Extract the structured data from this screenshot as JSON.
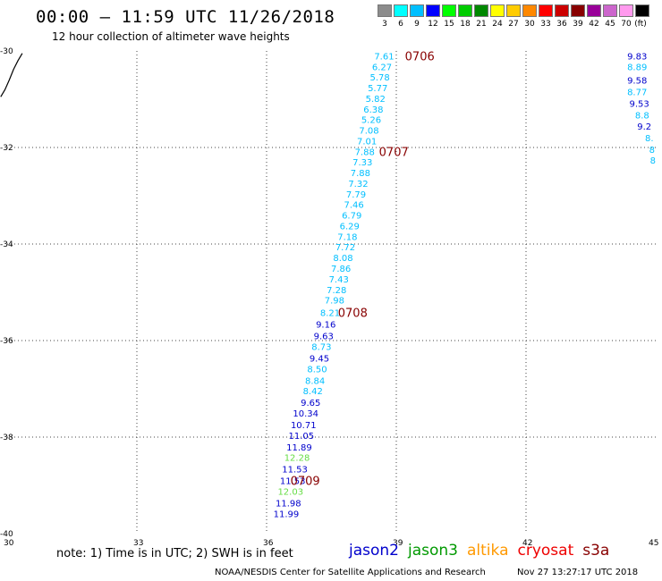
{
  "header": {
    "title": "00:00 – 11:59 UTC 11/26/2018",
    "subtitle": "12 hour collection of altimeter wave heights"
  },
  "legend": {
    "unit": "(ft)",
    "items": [
      {
        "label": "3",
        "color": "#8c8c8c"
      },
      {
        "label": "6",
        "color": "#00ffff"
      },
      {
        "label": "9",
        "color": "#00bfff"
      },
      {
        "label": "12",
        "color": "#0000ff"
      },
      {
        "label": "15",
        "color": "#00ff00"
      },
      {
        "label": "18",
        "color": "#00cc00"
      },
      {
        "label": "21",
        "color": "#008800"
      },
      {
        "label": "24",
        "color": "#ffff00"
      },
      {
        "label": "27",
        "color": "#ffcc00"
      },
      {
        "label": "30",
        "color": "#ff8800"
      },
      {
        "label": "33",
        "color": "#ff0000"
      },
      {
        "label": "36",
        "color": "#cc0000"
      },
      {
        "label": "39",
        "color": "#880000"
      },
      {
        "label": "42",
        "color": "#990099"
      },
      {
        "label": "45",
        "color": "#cc66cc"
      },
      {
        "label": "70",
        "color": "#ff99ee"
      },
      {
        "label": "",
        "color": "#000000"
      }
    ]
  },
  "map": {
    "lon_range": [
      30,
      45
    ],
    "lat_range": [
      -40,
      -30
    ],
    "lon_ticks": [
      "30",
      "33",
      "36",
      "39",
      "42",
      "45"
    ],
    "lat_ticks": [
      "-30",
      "-32",
      "-34",
      "-36",
      "-38",
      "-40"
    ],
    "track_main": [
      {
        "lon": 38.95,
        "lat": -30.1,
        "v": "7.61",
        "c": "#00bfff"
      },
      {
        "lon": 38.9,
        "lat": -30.32,
        "v": "6.27",
        "c": "#00bfff"
      },
      {
        "lon": 38.85,
        "lat": -30.54,
        "v": "5.78",
        "c": "#00bfff"
      },
      {
        "lon": 38.8,
        "lat": -30.76,
        "v": "5.77",
        "c": "#00bfff"
      },
      {
        "lon": 38.75,
        "lat": -30.98,
        "v": "5.82",
        "c": "#00bfff"
      },
      {
        "lon": 38.7,
        "lat": -31.2,
        "v": "6.38",
        "c": "#00bfff"
      },
      {
        "lon": 38.65,
        "lat": -31.42,
        "v": "5.26",
        "c": "#00bfff"
      },
      {
        "lon": 38.6,
        "lat": -31.64,
        "v": "7.08",
        "c": "#00bfff"
      },
      {
        "lon": 38.55,
        "lat": -31.86,
        "v": "7.01",
        "c": "#00bfff"
      },
      {
        "lon": 38.5,
        "lat": -32.08,
        "v": "7.88",
        "c": "#00bfff"
      },
      {
        "lon": 38.45,
        "lat": -32.3,
        "v": "7.33",
        "c": "#00bfff"
      },
      {
        "lon": 38.4,
        "lat": -32.52,
        "v": "7.88",
        "c": "#00bfff"
      },
      {
        "lon": 38.35,
        "lat": -32.74,
        "v": "7.32",
        "c": "#00bfff"
      },
      {
        "lon": 38.3,
        "lat": -32.96,
        "v": "7.79",
        "c": "#00bfff"
      },
      {
        "lon": 38.25,
        "lat": -33.18,
        "v": "7.46",
        "c": "#00bfff"
      },
      {
        "lon": 38.2,
        "lat": -33.4,
        "v": "6.79",
        "c": "#00bfff"
      },
      {
        "lon": 38.15,
        "lat": -33.62,
        "v": "6.29",
        "c": "#00bfff"
      },
      {
        "lon": 38.1,
        "lat": -33.84,
        "v": "7.18",
        "c": "#00bfff"
      },
      {
        "lon": 38.05,
        "lat": -34.06,
        "v": "7.72",
        "c": "#00bfff"
      },
      {
        "lon": 38.0,
        "lat": -34.28,
        "v": "8.08",
        "c": "#00bfff"
      },
      {
        "lon": 37.95,
        "lat": -34.5,
        "v": "7.86",
        "c": "#00bfff"
      },
      {
        "lon": 37.9,
        "lat": -34.72,
        "v": "7.43",
        "c": "#00bfff"
      },
      {
        "lon": 37.85,
        "lat": -34.94,
        "v": "7.28",
        "c": "#00bfff"
      },
      {
        "lon": 37.8,
        "lat": -35.16,
        "v": "7.98",
        "c": "#00bfff"
      },
      {
        "lon": 37.7,
        "lat": -35.42,
        "v": "8.21",
        "c": "#00bfff"
      },
      {
        "lon": 37.6,
        "lat": -35.66,
        "v": "9.16",
        "c": "#0000cc"
      },
      {
        "lon": 37.55,
        "lat": -35.9,
        "v": "9.63",
        "c": "#0000cc"
      },
      {
        "lon": 37.5,
        "lat": -36.12,
        "v": "8.73",
        "c": "#00bfff"
      },
      {
        "lon": 37.45,
        "lat": -36.36,
        "v": "9.45",
        "c": "#0000cc"
      },
      {
        "lon": 37.4,
        "lat": -36.58,
        "v": "8.50",
        "c": "#00bfff"
      },
      {
        "lon": 37.35,
        "lat": -36.82,
        "v": "8.84",
        "c": "#00bfff"
      },
      {
        "lon": 37.3,
        "lat": -37.04,
        "v": "8.42",
        "c": "#00bfff"
      },
      {
        "lon": 37.25,
        "lat": -37.28,
        "v": "9.65",
        "c": "#0000cc"
      },
      {
        "lon": 37.2,
        "lat": -37.5,
        "v": "10.34",
        "c": "#0000cc"
      },
      {
        "lon": 37.15,
        "lat": -37.74,
        "v": "10.71",
        "c": "#0000cc"
      },
      {
        "lon": 37.1,
        "lat": -37.96,
        "v": "11.05",
        "c": "#0000cc"
      },
      {
        "lon": 37.05,
        "lat": -38.2,
        "v": "11.89",
        "c": "#0000cc"
      },
      {
        "lon": 37.0,
        "lat": -38.42,
        "v": "12.28",
        "c": "#66dd44"
      },
      {
        "lon": 36.95,
        "lat": -38.66,
        "v": "11.53",
        "c": "#0000cc"
      },
      {
        "lon": 36.9,
        "lat": -38.9,
        "v": "11.53",
        "c": "#0000cc"
      },
      {
        "lon": 36.85,
        "lat": -39.12,
        "v": "12.03",
        "c": "#66dd44"
      },
      {
        "lon": 36.8,
        "lat": -39.36,
        "v": "11.98",
        "c": "#0000cc"
      },
      {
        "lon": 36.75,
        "lat": -39.58,
        "v": "11.99",
        "c": "#0000cc"
      }
    ],
    "time_labels": [
      {
        "lon": 39.2,
        "lat": -30.1,
        "t": "0706"
      },
      {
        "lon": 38.6,
        "lat": -32.08,
        "t": "0707"
      },
      {
        "lon": 37.65,
        "lat": -35.42,
        "t": "0708"
      },
      {
        "lon": 36.55,
        "lat": -38.9,
        "t": "0709"
      }
    ],
    "track_edge": [
      {
        "lon": 44.8,
        "lat": -30.1,
        "v": "9.83",
        "c": "#0000cc"
      },
      {
        "lon": 44.8,
        "lat": -30.32,
        "v": "8.89",
        "c": "#00bfff"
      },
      {
        "lon": 44.8,
        "lat": -30.6,
        "v": "9.58",
        "c": "#0000cc"
      },
      {
        "lon": 44.8,
        "lat": -30.84,
        "v": "8.77",
        "c": "#00bfff"
      },
      {
        "lon": 44.85,
        "lat": -31.08,
        "v": "9.53",
        "c": "#0000cc"
      },
      {
        "lon": 44.85,
        "lat": -31.32,
        "v": "8.8",
        "c": "#00bfff"
      },
      {
        "lon": 44.9,
        "lat": -31.56,
        "v": "9.2",
        "c": "#0000cc"
      },
      {
        "lon": 44.95,
        "lat": -31.8,
        "v": "8.",
        "c": "#00bfff"
      },
      {
        "lon": 44.98,
        "lat": -32.04,
        "v": "8",
        "c": "#00bfff"
      },
      {
        "lon": 45.0,
        "lat": -32.26,
        "v": "8",
        "c": "#00bfff"
      }
    ],
    "coastline": [
      {
        "lon": 30.35,
        "lat": -30.05
      },
      {
        "lon": 30.25,
        "lat": -30.2
      },
      {
        "lon": 30.15,
        "lat": -30.38
      },
      {
        "lon": 30.05,
        "lat": -30.6
      },
      {
        "lon": 29.95,
        "lat": -30.8
      },
      {
        "lon": 29.85,
        "lat": -30.95
      }
    ]
  },
  "footer": {
    "note": "note: 1) Time is in UTC; 2) SWH is in feet",
    "satellites": [
      {
        "name": "jason2",
        "color": "#0000cc"
      },
      {
        "name": "jason3",
        "color": "#009900"
      },
      {
        "name": "altika",
        "color": "#ff9900"
      },
      {
        "name": "cryosat",
        "color": "#ee0000"
      },
      {
        "name": "s3a",
        "color": "#880000"
      }
    ],
    "credit": "NOAA/NESDIS Center for Satellite Applications and Research",
    "timestamp": "Nov 27 13:27:17 UTC 2018"
  }
}
